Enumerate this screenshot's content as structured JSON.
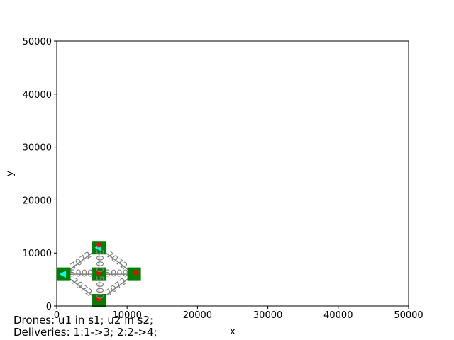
{
  "chart_data": {
    "type": "scatter",
    "xlabel": "x",
    "ylabel": "y",
    "xlim": [
      0,
      50000
    ],
    "ylim": [
      0,
      50000
    ],
    "xticks": [
      "0",
      "10000",
      "20000",
      "30000",
      "40000",
      "50000"
    ],
    "yticks": [
      "0",
      "10000",
      "20000",
      "30000",
      "40000",
      "50000"
    ],
    "grid": false,
    "nodes": [
      {
        "id": "n1",
        "x": 1000,
        "y": 6000,
        "color": "#008000"
      },
      {
        "id": "n2",
        "x": 6000,
        "y": 11000,
        "color": "#008000"
      },
      {
        "id": "n3",
        "x": 6000,
        "y": 6000,
        "color": "#008000"
      },
      {
        "id": "n4",
        "x": 6000,
        "y": 1000,
        "color": "#008000"
      },
      {
        "id": "n5",
        "x": 11000,
        "y": 6000,
        "color": "#008000"
      }
    ],
    "edges": [
      {
        "from": "n1",
        "to": "n3",
        "label": "5000",
        "color": "#808080"
      },
      {
        "from": "n3",
        "to": "n5",
        "label": "5000",
        "color": "#808080"
      },
      {
        "from": "n2",
        "to": "n3",
        "label": "5000",
        "color": "#808080"
      },
      {
        "from": "n3",
        "to": "n4",
        "label": "5000",
        "color": "#808080"
      },
      {
        "from": "n1",
        "to": "n2",
        "label": "7072",
        "color": "#808080"
      },
      {
        "from": "n2",
        "to": "n5",
        "label": "7072",
        "color": "#808080"
      },
      {
        "from": "n1",
        "to": "n4",
        "label": "7072",
        "color": "#808080"
      },
      {
        "from": "n4",
        "to": "n5",
        "label": "7072",
        "color": "#808080"
      }
    ],
    "drone_markers": [
      {
        "x": 1000,
        "y": 6000,
        "color": "#00ffff"
      },
      {
        "x": 6000,
        "y": 11000,
        "color": "#00ffff"
      }
    ],
    "delivery_markers": [
      {
        "x": 6000,
        "y": 11500,
        "color": "#ff0000"
      },
      {
        "x": 6000,
        "y": 6300,
        "color": "#ff0000"
      },
      {
        "x": 11300,
        "y": 6300,
        "color": "#ff0000"
      },
      {
        "x": 6000,
        "y": 1300,
        "color": "#ff0000"
      }
    ]
  },
  "caption": {
    "line1": "Drones: u1 in s1; u2 in s2;",
    "line2": "Deliveries: 1:1->3; 2:2->4;"
  }
}
